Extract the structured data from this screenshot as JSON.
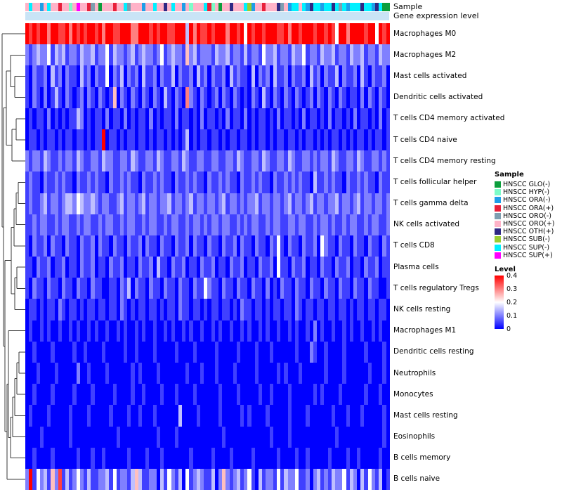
{
  "annotations": {
    "sample_label": "Sample",
    "gene_label": "Gene expression level",
    "gene_color": "#C9E4F6",
    "sample_track": "5855258553551595534505553558455525585565855251555831505565558725535556452885826882886848288868826800"
  },
  "sample_categories": [
    {
      "label": "HNSCC GLO(-)",
      "color": "#0C9E3C"
    },
    {
      "label": "HNSCC HYP(-)",
      "color": "#7CFCC8"
    },
    {
      "label": "HNSCC ORA(-)",
      "color": "#1E9EE8"
    },
    {
      "label": "HNSCC ORA(+)",
      "color": "#E8203A"
    },
    {
      "label": "HNSCC ORO(-)",
      "color": "#7E9EB0"
    },
    {
      "label": "HNSCC ORO(+)",
      "color": "#FFB3C8"
    },
    {
      "label": "HNSCC OTH(+)",
      "color": "#2E2884"
    },
    {
      "label": "HNSCC SUB(-)",
      "color": "#9ACD32"
    },
    {
      "label": "HNSCC SUP(-)",
      "color": "#00F0FF"
    },
    {
      "label": "HNSCC SUP(+)",
      "color": "#FF00FF"
    }
  ],
  "legend": {
    "sample_title": "Sample",
    "level_title": "Level",
    "level_ticks": [
      "0.4",
      "0.3",
      "0.2",
      "0.1",
      "0"
    ],
    "level_colors": [
      "#FF0000",
      "#FFFFFF",
      "#0000FF"
    ]
  },
  "chart_data": {
    "type": "heatmap",
    "title": "",
    "rows": [
      "Macrophages M0",
      "Macrophages M2",
      "Mast cells activated",
      "Dendritic cells activated",
      "T cells CD4 memory activated",
      "T cells CD4 naive",
      "T cells CD4 memory resting",
      "T cells follicular helper",
      "T cells gamma delta",
      "NK cells activated",
      "T cells CD8",
      "Plasma cells",
      "T cells regulatory  Tregs",
      "NK cells resting",
      "Macrophages M1",
      "Dendritic cells resting",
      "Neutrophils",
      "Monocytes",
      "Mast cells resting",
      "Eosinophils",
      "B cells memory",
      "B cells naive"
    ],
    "n_columns": 100,
    "value_scale": {
      "min": 0,
      "white_point": 0.2,
      "max": 0.4,
      "step_per_digit": 0.05,
      "encoding_note": "each matrix digit d encodes cell fraction value d*0.05; colormap blue(0)-white(0.2)-red(>=0.4)"
    },
    "matrix_digits": [
      "8797886987796879788796897788966889787987788938697787989688794878979887796887889788797489688897884978",
      "2123224132312213223122413221231232212412322152312221322312213122142231221322412213223122132231221322",
      "1021120312021103120211402130212031120211302112031202112031211030212031120211203120211302112031021120",
      "1021020131021012021021015021021021021031021062102101202102101021031021021021012021021021011020210210",
      "0101102010101132010110201102010110201011020110102011010201102010110102011010201101020110102011010201",
      "0110101101011011010118011010110110101101010130101101101011011010110101101101011010101101010110101101",
      "2122132112122132112213221122132112213211221321122112211221321122132112213211221212213211221321122121",
      "1211021121211021121211021121211021121211021121211021121211021121211021121212110311212110211212110211",
      "1211231221233243223212211231221231221223122123122122123122121223122122123122123122122312212312212212",
      "1121221121221121221121221121221121221121221121221212212211212122112122112212211212212112122112122112",
      "1021120211021102112021102110211202110211021120211021102112021102110214102110211204211021102110211021",
      "1102112011201102112011021120110211203110211201102112011021120110211204110211201102110211201102112011",
      "1021102110211021102110011021302110211021102110211421102110211021102010211021102110211021102110211001",
      "0110101102101101011011011021010110110101102110110101101101021101101011011021011011011011010110110110",
      "0100101001001010010100100101001010010010100101001001010010010100101001001010010201001001010010010100",
      "0010000100000100100001000001001000010000010000100000100000100001000100000010002100100001000001000010",
      "0001000010000020010000100000010100001000000010001000100001000001000001010001000000100001000000100010",
      "0010000100000100001000001000010010000100010000100000010000100000100100001000000101000010000001000100",
      "0100001000001000010000010000100100010000003000010000010000010100001000001000010000001000100010000010",
      "0000100000001000000000000100000000001000010000000000001000000000000100001000000000000100000000000010",
      "0010000100000010001001000000100001000100000001000001000010000010000001000010010000010000100100000100",
      "2814231527131242131122314122135311220314213041232113025212312410312214132241120231213224132031421301"
    ],
    "dendrogram_merges": [
      {
        "id": "M1",
        "a": "L2",
        "b": "L3",
        "x": 21
      },
      {
        "id": "M2",
        "a": "L1",
        "b": "M1",
        "x": 15
      },
      {
        "id": "M3",
        "a": "L4",
        "b": "L5",
        "x": 23
      },
      {
        "id": "M4",
        "a": "M3",
        "b": "L6",
        "x": 17
      },
      {
        "id": "M5",
        "a": "M2",
        "b": "M4",
        "x": 9
      },
      {
        "id": "M6",
        "a": "L7",
        "b": "L8",
        "x": 26
      },
      {
        "id": "M7",
        "a": "M6",
        "b": "L9",
        "x": 23
      },
      {
        "id": "M8",
        "a": "M7",
        "b": "L10",
        "x": 20
      },
      {
        "id": "M9",
        "a": "L11",
        "b": "L12",
        "x": 24
      },
      {
        "id": "M10",
        "a": "M9",
        "b": "L13",
        "x": 21
      },
      {
        "id": "M11",
        "a": "M8",
        "b": "M10",
        "x": 16
      },
      {
        "id": "M12",
        "a": "L15",
        "b": "L16",
        "x": 27
      },
      {
        "id": "M13",
        "a": "M12",
        "b": "L17",
        "x": 24
      },
      {
        "id": "M14",
        "a": "M13",
        "b": "L18",
        "x": 21
      },
      {
        "id": "M15",
        "a": "M14",
        "b": "L19",
        "x": 18
      },
      {
        "id": "M16",
        "a": "M15",
        "b": "L20",
        "x": 15
      },
      {
        "id": "M17",
        "a": "L14",
        "b": "M16",
        "x": 12
      },
      {
        "id": "M18",
        "a": "M17",
        "b": "L21",
        "x": 10
      },
      {
        "id": "M19",
        "a": "M11",
        "b": "M18",
        "x": 7
      },
      {
        "id": "M20",
        "a": "M5",
        "b": "M19",
        "x": 5
      },
      {
        "id": "M21",
        "a": "L0",
        "b": "M20",
        "x": 3
      }
    ]
  }
}
